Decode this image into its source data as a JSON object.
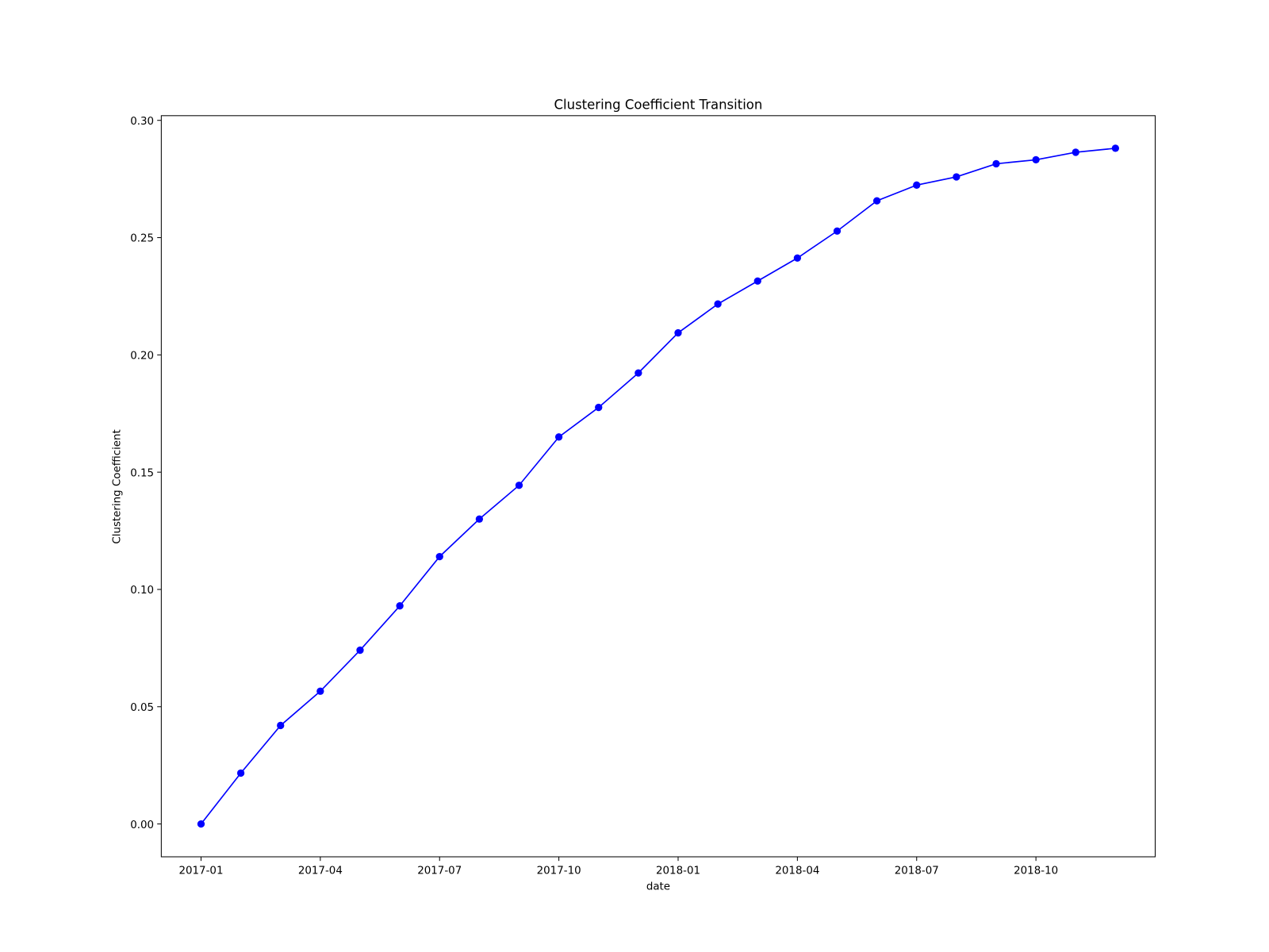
{
  "chart_data": {
    "type": "line",
    "title": "Clustering Coefficient Transition",
    "xlabel": "date",
    "ylabel": "Clustering Coefficient",
    "x": [
      "2017-01",
      "2017-02",
      "2017-03",
      "2017-04",
      "2017-05",
      "2017-06",
      "2017-07",
      "2017-08",
      "2017-09",
      "2017-10",
      "2017-11",
      "2017-12",
      "2018-01",
      "2018-02",
      "2018-03",
      "2018-04",
      "2018-05",
      "2018-06",
      "2018-07",
      "2018-08",
      "2018-09",
      "2018-10",
      "2018-11",
      "2018-12"
    ],
    "series": [
      {
        "color": "#0000ff",
        "marker": "circle",
        "values": [
          0,
          0.0217,
          0.042,
          0.0566,
          0.0741,
          0.093,
          0.114,
          0.13,
          0.1444,
          0.165,
          0.1776,
          0.1923,
          0.2094,
          0.2217,
          0.2315,
          0.2413,
          0.2528,
          0.2657,
          0.2724,
          0.2759,
          0.2815,
          0.2832,
          0.2864,
          0.2881
        ]
      }
    ],
    "xlim": [
      "2016-12",
      "2019-01"
    ],
    "xticks": [
      "2017-01",
      "2017-04",
      "2017-07",
      "2017-10",
      "2018-01",
      "2018-04",
      "2018-07",
      "2018-10"
    ],
    "ylim": [
      -0.014,
      0.302
    ],
    "yticks": [
      {
        "value": 0,
        "label": "0.00"
      },
      {
        "value": 0.05,
        "label": "0.05"
      },
      {
        "value": 0.1,
        "label": "0.10"
      },
      {
        "value": 0.15,
        "label": "0.15"
      },
      {
        "value": 0.2,
        "label": "0.20"
      },
      {
        "value": 0.25,
        "label": "0.25"
      },
      {
        "value": 0.3,
        "label": "0.30"
      }
    ],
    "grid": false
  }
}
